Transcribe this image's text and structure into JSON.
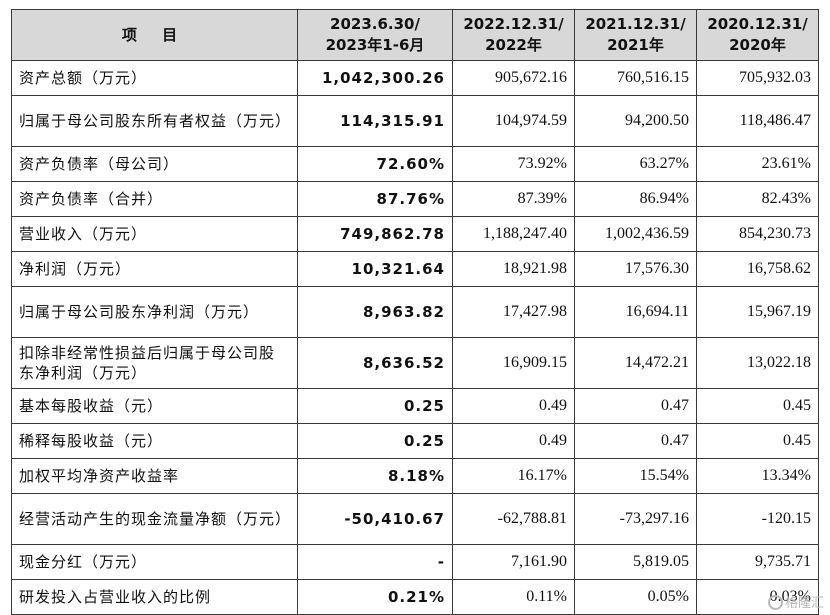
{
  "table": {
    "headers": [
      {
        "line1": "项  目",
        "line2": ""
      },
      {
        "line1": "2023.6.30/",
        "line2": "2023年1-6月"
      },
      {
        "line1": "2022.12.31/",
        "line2": "2022年"
      },
      {
        "line1": "2021.12.31/",
        "line2": "2021年"
      },
      {
        "line1": "2020.12.31/",
        "line2": "2020年"
      }
    ],
    "rows": [
      {
        "label": "资产总额（万元）",
        "values": [
          "1,042,300.26",
          "905,672.16",
          "760,516.15",
          "705,932.03"
        ]
      },
      {
        "label": "归属于母公司股东所有者权益（万元）",
        "values": [
          "114,315.91",
          "104,974.59",
          "94,200.50",
          "118,486.47"
        ]
      },
      {
        "label": "资产负债率（母公司）",
        "values": [
          "72.60%",
          "73.92%",
          "63.27%",
          "23.61%"
        ]
      },
      {
        "label": "资产负债率（合并）",
        "values": [
          "87.76%",
          "87.39%",
          "86.94%",
          "82.43%"
        ]
      },
      {
        "label": "营业收入（万元）",
        "values": [
          "749,862.78",
          "1,188,247.40",
          "1,002,436.59",
          "854,230.73"
        ]
      },
      {
        "label": "净利润（万元）",
        "values": [
          "10,321.64",
          "18,921.98",
          "17,576.30",
          "16,758.62"
        ]
      },
      {
        "label": "归属于母公司股东净利润（万元）",
        "values": [
          "8,963.82",
          "17,427.98",
          "16,694.11",
          "15,967.19"
        ]
      },
      {
        "label": "扣除非经常性损益后归属于母公司股东净利润（万元）",
        "values": [
          "8,636.52",
          "16,909.15",
          "14,472.21",
          "13,022.18"
        ]
      },
      {
        "label": "基本每股收益（元）",
        "values": [
          "0.25",
          "0.49",
          "0.47",
          "0.45"
        ]
      },
      {
        "label": "稀释每股收益（元）",
        "values": [
          "0.25",
          "0.49",
          "0.47",
          "0.45"
        ]
      },
      {
        "label": "加权平均净资产收益率",
        "values": [
          "8.18%",
          "16.17%",
          "15.54%",
          "13.34%"
        ]
      },
      {
        "label": "经营活动产生的现金流量净额（万元）",
        "values": [
          "-50,410.67",
          "-62,788.81",
          "-73,297.16",
          "-120.15"
        ]
      },
      {
        "label": "现金分红（万元）",
        "values": [
          "-",
          "7,161.90",
          "5,819.05",
          "9,735.71"
        ]
      },
      {
        "label": "研发投入占营业收入的比例",
        "values": [
          "0.21%",
          "0.11%",
          "0.05%",
          "0.03%"
        ]
      }
    ]
  },
  "watermark": {
    "text": "格隆汇"
  }
}
